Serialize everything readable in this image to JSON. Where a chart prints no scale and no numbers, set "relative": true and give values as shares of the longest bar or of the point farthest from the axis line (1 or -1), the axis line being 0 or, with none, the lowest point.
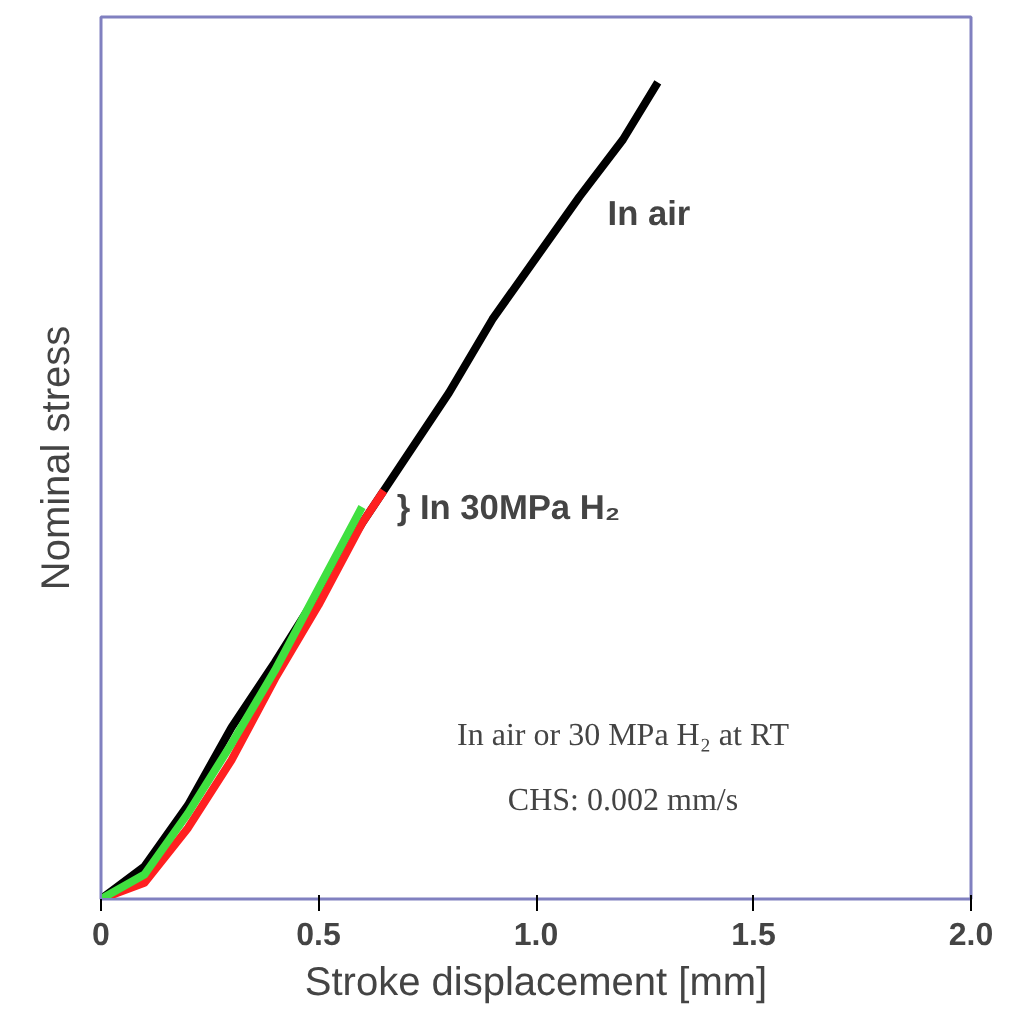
{
  "chart_data": {
    "type": "line",
    "relative": true,
    "xlabel": "Stroke displacement [mm]",
    "ylabel": "Nominal stress",
    "xlim": [
      0,
      2
    ],
    "xticks": [
      0,
      0.5,
      {
        "value": 1,
        "label": "1.0"
      },
      1.5,
      {
        "value": 2,
        "label": "2.0"
      }
    ],
    "grid": false,
    "marker": "none",
    "line_style": "solid",
    "tick_labels": "x",
    "series": [
      {
        "name": "In air",
        "color": "#000000",
        "x": [
          0,
          0.1,
          0.2,
          0.3,
          0.4,
          0.5,
          0.6,
          0.7,
          0.8,
          0.9,
          1.0,
          1.1,
          1.2,
          1.28
        ],
        "values": [
          0,
          0.04,
          0.115,
          0.21,
          0.29,
          0.375,
          0.46,
          0.54,
          0.62,
          0.71,
          0.785,
          0.86,
          0.93,
          1
        ]
      },
      {
        "color": "#ff2020",
        "x": [
          0,
          0.1,
          0.2,
          0.3,
          0.4,
          0.5,
          0.6,
          0.65
        ],
        "values": [
          0,
          0.02,
          0.087,
          0.17,
          0.27,
          0.36,
          0.46,
          0.5
        ]
      },
      {
        "color": "#40e040",
        "x": [
          0,
          0.1,
          0.2,
          0.3,
          0.4,
          0.5,
          0.6
        ],
        "values": [
          0,
          0.03,
          0.105,
          0.19,
          0.28,
          0.38,
          0.48
        ]
      }
    ],
    "annotations": [
      "} In 30MPa H₂",
      "In air or 30 MPa H₂ at RT",
      "CHS: 0.002 mm/s"
    ]
  }
}
